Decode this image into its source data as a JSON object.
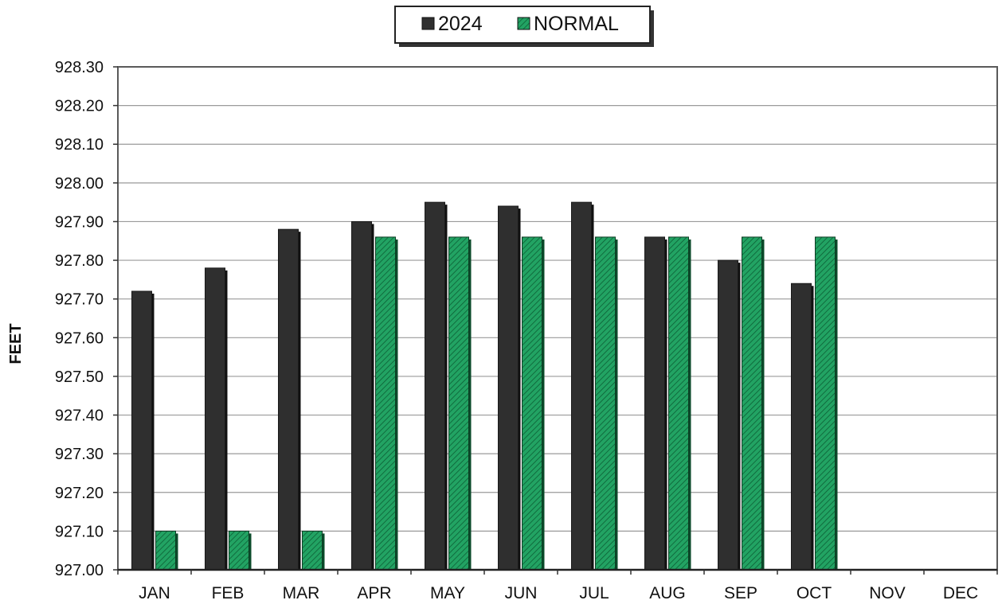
{
  "chart_data": {
    "type": "bar",
    "title": "",
    "xlabel": "",
    "ylabel": "FEET",
    "ylim": [
      927.0,
      928.3
    ],
    "ytick_step": 0.1,
    "ytick_decimals": 2,
    "grid": true,
    "legend_position": "top-center",
    "categories": [
      "JAN",
      "FEB",
      "MAR",
      "APR",
      "MAY",
      "JUN",
      "JUL",
      "AUG",
      "SEP",
      "OCT",
      "NOV",
      "DEC"
    ],
    "series": [
      {
        "name": "2024",
        "color": "#2f2f2f",
        "pattern": "solid",
        "values": [
          927.72,
          927.78,
          927.88,
          927.9,
          927.95,
          927.94,
          927.95,
          927.86,
          927.8,
          927.74,
          null,
          null
        ]
      },
      {
        "name": "NORMAL",
        "color": "#1f9a5c",
        "pattern": "hatched",
        "values": [
          927.1,
          927.1,
          927.1,
          927.86,
          927.86,
          927.86,
          927.86,
          927.86,
          927.86,
          927.86,
          null,
          null
        ]
      }
    ]
  }
}
